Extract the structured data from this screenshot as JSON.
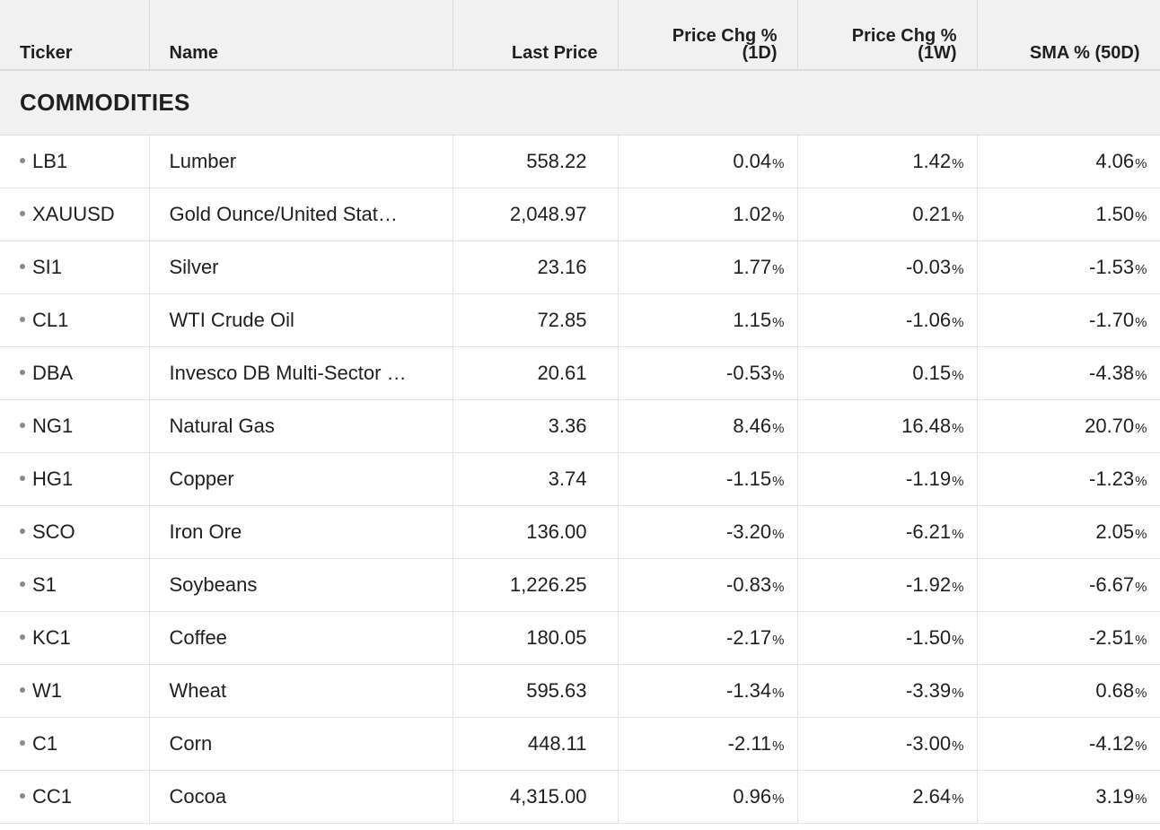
{
  "header": {
    "ticker": "Ticker",
    "name": "Name",
    "last_price": "Last Price",
    "chg_1d_line1": "Price Chg %",
    "chg_1d_line2": "(1D)",
    "chg_1w_line1": "Price Chg %",
    "chg_1w_line2": "(1W)",
    "sma": "SMA % (50D)"
  },
  "section": {
    "title": "COMMODITIES"
  },
  "colors": {
    "positive": "#1f8a3b",
    "negative": "#d33a2f"
  },
  "rows": [
    {
      "ticker": "LB1",
      "name": "Lumber",
      "price": "558.22",
      "d1": "0.04",
      "w1": "1.42",
      "sma": "4.06"
    },
    {
      "ticker": "XAUUSD",
      "name": "Gold Ounce/United Stat…",
      "price": "2,048.97",
      "d1": "1.02",
      "w1": "0.21",
      "sma": "1.50"
    },
    {
      "ticker": "SI1",
      "name": "Silver",
      "price": "23.16",
      "d1": "1.77",
      "w1": "-0.03",
      "sma": "-1.53"
    },
    {
      "ticker": "CL1",
      "name": "WTI Crude Oil",
      "price": "72.85",
      "d1": "1.15",
      "w1": "-1.06",
      "sma": "-1.70"
    },
    {
      "ticker": "DBA",
      "name": "Invesco DB Multi-Sector …",
      "price": "20.61",
      "d1": "-0.53",
      "w1": "0.15",
      "sma": "-4.38"
    },
    {
      "ticker": "NG1",
      "name": "Natural Gas",
      "price": "3.36",
      "d1": "8.46",
      "w1": "16.48",
      "sma": "20.70"
    },
    {
      "ticker": "HG1",
      "name": "Copper",
      "price": "3.74",
      "d1": "-1.15",
      "w1": "-1.19",
      "sma": "-1.23"
    },
    {
      "ticker": "SCO",
      "name": "Iron Ore",
      "price": "136.00",
      "d1": "-3.20",
      "w1": "-6.21",
      "sma": "2.05"
    },
    {
      "ticker": "S1",
      "name": "Soybeans",
      "price": "1,226.25",
      "d1": "-0.83",
      "w1": "-1.92",
      "sma": "-6.67"
    },
    {
      "ticker": "KC1",
      "name": "Coffee",
      "price": "180.05",
      "d1": "-2.17",
      "w1": "-1.50",
      "sma": "-2.51"
    },
    {
      "ticker": "W1",
      "name": "Wheat",
      "price": "595.63",
      "d1": "-1.34",
      "w1": "-3.39",
      "sma": "0.68"
    },
    {
      "ticker": "C1",
      "name": "Corn",
      "price": "448.11",
      "d1": "-2.11",
      "w1": "-3.00",
      "sma": "-4.12"
    },
    {
      "ticker": "CC1",
      "name": "Cocoa",
      "price": "4,315.00",
      "d1": "0.96",
      "w1": "2.64",
      "sma": "3.19"
    }
  ],
  "percent_sign": "%"
}
